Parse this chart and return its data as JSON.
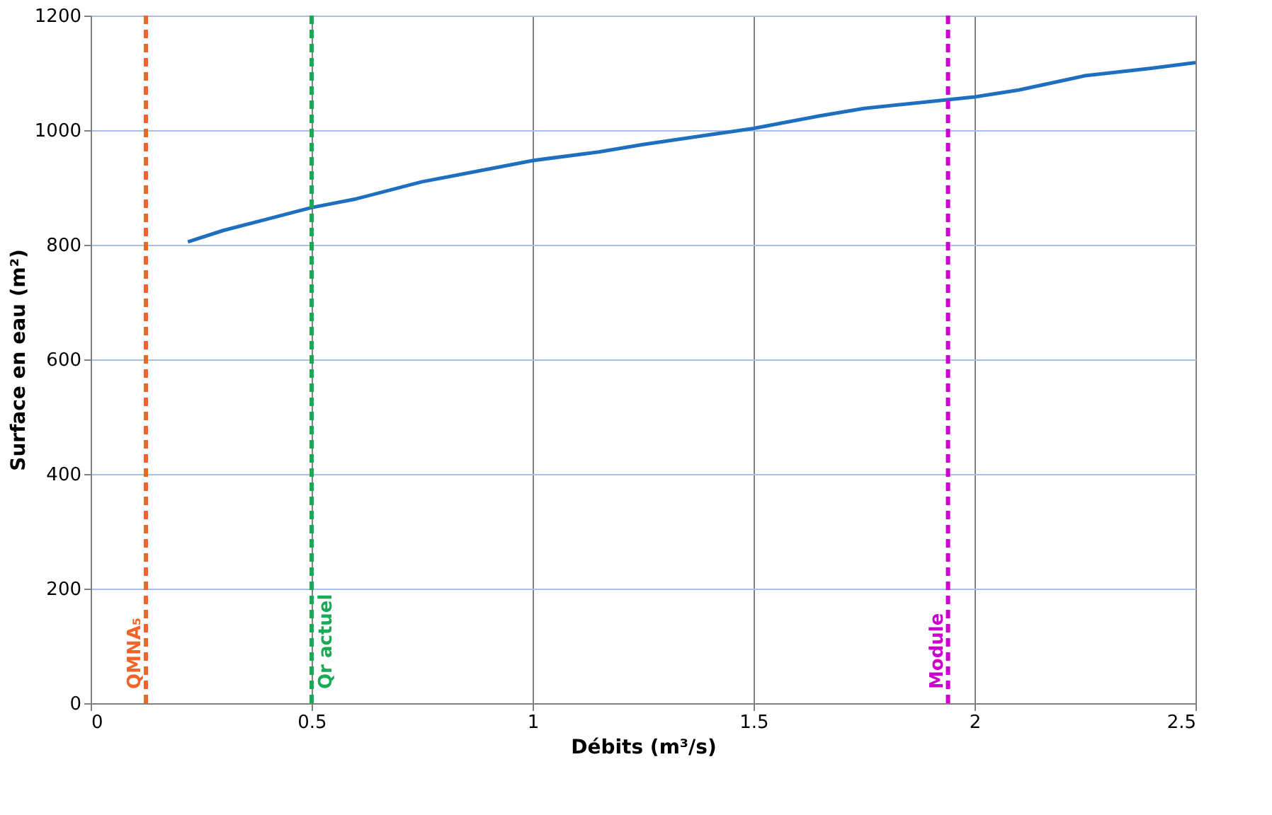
{
  "chart_data": {
    "type": "line",
    "xlabel": "Débits (m³/s)",
    "ylabel": "Surface en eau (m²)",
    "x": [
      0.22,
      0.3,
      0.4,
      0.5,
      0.6,
      0.75,
      0.9,
      1.0,
      1.15,
      1.25,
      1.4,
      1.5,
      1.65,
      1.75,
      1.9,
      2.0,
      2.1,
      2.25,
      2.4,
      2.5
    ],
    "series": [
      {
        "color": "#1f6fc0",
        "values": [
          805,
          825,
          845,
          865,
          880,
          910,
          932,
          947,
          962,
          975,
          992,
          1003,
          1025,
          1038,
          1050,
          1058,
          1070,
          1095,
          1108,
          1118
        ]
      }
    ],
    "xlim": [
      0,
      2.5
    ],
    "ylim": [
      0,
      1200
    ],
    "xticks": [
      0,
      0.5,
      1,
      1.5,
      2,
      2.5
    ],
    "yticks": [
      0,
      200,
      400,
      600,
      800,
      1000,
      1200
    ],
    "grid": true,
    "line_style": "solid",
    "marker": "none",
    "ref_lines": [
      {
        "axis": "x",
        "value": 0.125,
        "label": "QMNA₅",
        "color": "#f0642a",
        "line_style": "dashed"
      },
      {
        "axis": "x",
        "value": 0.5,
        "label": "Qr actuel",
        "color": "#1aaa55",
        "line_style": "dashed"
      },
      {
        "axis": "x",
        "value": 1.94,
        "label": "Module",
        "color": "#cc00cc",
        "line_style": "dashed"
      }
    ]
  }
}
